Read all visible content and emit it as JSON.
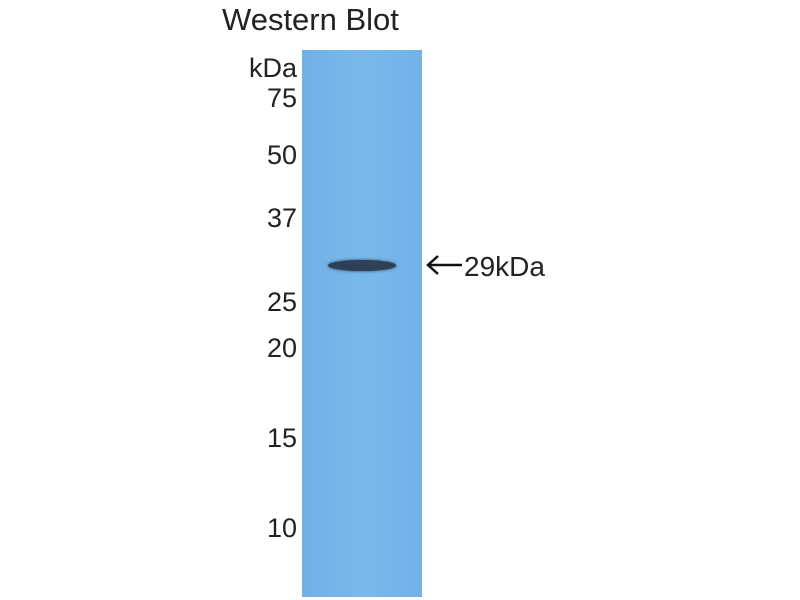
{
  "title": "Western Blot",
  "unit_label": "kDa",
  "markers": [
    "75",
    "50",
    "37",
    "25",
    "20",
    "15",
    "10"
  ],
  "band_label": "29kDa",
  "colors": {
    "membrane": "#78b6ea",
    "band": "#2f3f55"
  }
}
